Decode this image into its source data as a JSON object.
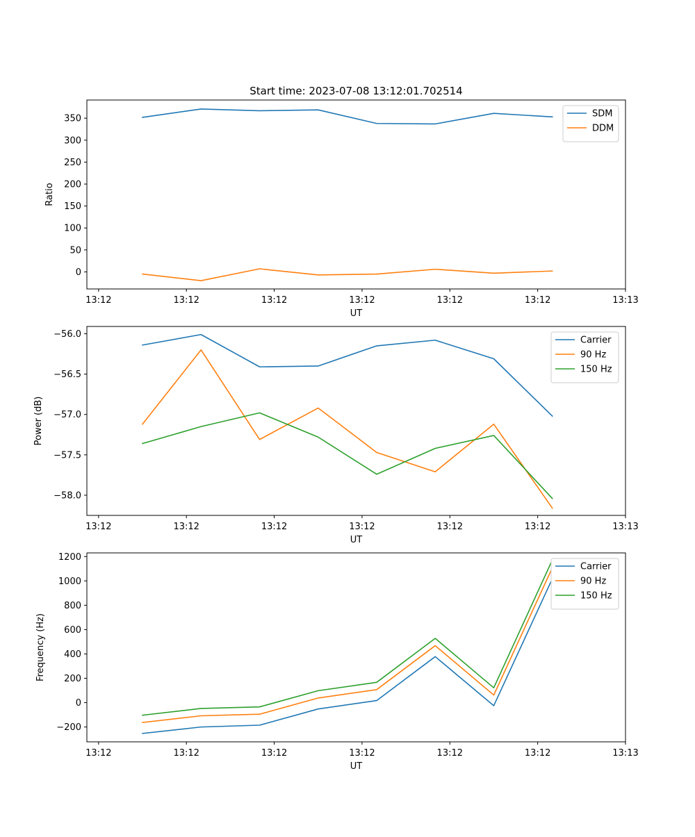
{
  "figure_title": "Start time: 2023-07-08 13:12:01.702514",
  "colors": {
    "c0": "#1f77b4",
    "c1": "#ff7f0e",
    "c2": "#2ca02c"
  },
  "chart_data": [
    {
      "type": "line",
      "title": "Start time: 2023-07-08 13:12:01.702514",
      "xlabel": "UT",
      "ylabel": "Ratio",
      "xlim": [
        -0.95,
        8.25
      ],
      "ylim": [
        -38.9,
        391.4
      ],
      "x": [
        0,
        1,
        2,
        3,
        4,
        5,
        6,
        7
      ],
      "x_ticks": [
        -0.75,
        0.75,
        2.25,
        3.75,
        5.25,
        6.75,
        8.25
      ],
      "x_tick_labels": [
        "13:12",
        "13:12",
        "13:12",
        "13:12",
        "13:12",
        "13:12",
        "13:13"
      ],
      "y_ticks": [
        0,
        50,
        100,
        150,
        200,
        250,
        300,
        350
      ],
      "y_tick_labels": [
        "0",
        "50",
        "100",
        "150",
        "200",
        "250",
        "300",
        "350"
      ],
      "legend_position": "top-right",
      "series": [
        {
          "name": "SDM",
          "color": "#1f77b4",
          "values": [
            352,
            371,
            367,
            369,
            338,
            337,
            361,
            353
          ]
        },
        {
          "name": "DDM",
          "color": "#ff7f0e",
          "values": [
            -5,
            -20,
            7,
            -7,
            -5,
            6,
            -3,
            2
          ]
        }
      ]
    },
    {
      "type": "line",
      "title": "",
      "xlabel": "UT",
      "ylabel": "Power (dB)",
      "xlim": [
        -0.95,
        8.25
      ],
      "ylim": [
        -58.25,
        -55.91
      ],
      "x": [
        0,
        1,
        2,
        3,
        4,
        5,
        6,
        7
      ],
      "x_ticks": [
        -0.75,
        0.75,
        2.25,
        3.75,
        5.25,
        6.75,
        8.25
      ],
      "x_tick_labels": [
        "13:12",
        "13:12",
        "13:12",
        "13:12",
        "13:12",
        "13:12",
        "13:13"
      ],
      "y_ticks": [
        -58.0,
        -57.5,
        -57.0,
        -56.5,
        -56.0
      ],
      "y_tick_labels": [
        "−58.0",
        "−57.5",
        "−57.0",
        "−56.5",
        "−56.0"
      ],
      "legend_position": "top-right",
      "series": [
        {
          "name": "Carrier",
          "color": "#1f77b4",
          "values": [
            -56.14,
            -56.01,
            -56.41,
            -56.4,
            -56.15,
            -56.08,
            -56.31,
            -57.02
          ]
        },
        {
          "name": "90 Hz",
          "color": "#ff7f0e",
          "values": [
            -57.12,
            -56.2,
            -57.31,
            -56.92,
            -57.47,
            -57.71,
            -57.12,
            -58.16
          ]
        },
        {
          "name": "150 Hz",
          "color": "#2ca02c",
          "values": [
            -57.36,
            -57.15,
            -56.98,
            -57.28,
            -57.74,
            -57.42,
            -57.26,
            -58.04
          ]
        }
      ]
    },
    {
      "type": "line",
      "title": "",
      "xlabel": "UT",
      "ylabel": "Frequency (Hz)",
      "xlim": [
        -0.95,
        8.25
      ],
      "ylim": [
        -322,
        1230
      ],
      "x": [
        0,
        1,
        2,
        3,
        4,
        5,
        6,
        7
      ],
      "x_ticks": [
        -0.75,
        0.75,
        2.25,
        3.75,
        5.25,
        6.75,
        8.25
      ],
      "x_tick_labels": [
        "13:12",
        "13:12",
        "13:12",
        "13:12",
        "13:12",
        "13:12",
        "13:13"
      ],
      "y_ticks": [
        -200,
        0,
        200,
        400,
        600,
        800,
        1000,
        1200
      ],
      "y_tick_labels": [
        "−200",
        "0",
        "200",
        "400",
        "600",
        "800",
        "1000",
        "1200"
      ],
      "legend_position": "top-right",
      "series": [
        {
          "name": "Carrier",
          "color": "#1f77b4",
          "values": [
            -253,
            -200,
            -185,
            -52,
            17,
            378,
            -25,
            1018
          ]
        },
        {
          "name": "90 Hz",
          "color": "#ff7f0e",
          "values": [
            -163,
            -108,
            -95,
            38,
            107,
            468,
            62,
            1108
          ]
        },
        {
          "name": "150 Hz",
          "color": "#2ca02c",
          "values": [
            -103,
            -48,
            -35,
            98,
            167,
            528,
            122,
            1172
          ]
        }
      ]
    }
  ]
}
